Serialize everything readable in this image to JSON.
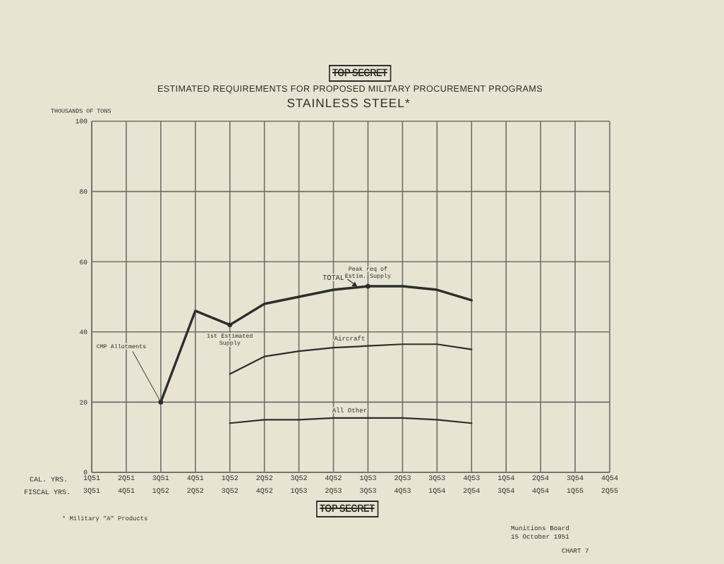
{
  "chart_data": {
    "type": "line",
    "title": "ESTIMATED REQUIREMENTS FOR PROPOSED MILITARY PROCUREMENT PROGRAMS",
    "subtitle": "STAINLESS STEEL*",
    "ylabel": "THOUSANDS OF TONS",
    "xlabel": "CAL. YRS.",
    "x2label": "FISCAL YRS.",
    "xlim": [
      "1951-01",
      "1954-10"
    ],
    "xticks": [
      {
        "value": "1951-01",
        "label": "1Q51"
      },
      {
        "value": "1951-04",
        "label": "2Q51"
      },
      {
        "value": "1951-07",
        "label": "3Q51"
      },
      {
        "value": "1951-10",
        "label": "4Q51"
      },
      {
        "value": "1952-01",
        "label": "1Q52"
      },
      {
        "value": "1952-04",
        "label": "2Q52"
      },
      {
        "value": "1952-07",
        "label": "3Q52"
      },
      {
        "value": "1952-10",
        "label": "4Q52"
      },
      {
        "value": "1953-01",
        "label": "1Q53"
      },
      {
        "value": "1953-04",
        "label": "2Q53"
      },
      {
        "value": "1953-07",
        "label": "3Q53"
      },
      {
        "value": "1953-10",
        "label": "4Q53"
      },
      {
        "value": "1954-01",
        "label": "1Q54"
      },
      {
        "value": "1954-04",
        "label": "2Q54"
      },
      {
        "value": "1954-07",
        "label": "3Q54"
      },
      {
        "value": "1954-10",
        "label": "4Q54"
      }
    ],
    "x2lim": [
      "1951-01",
      "1954-10"
    ],
    "x2ticks": [
      {
        "value": "1951-01",
        "label": "3Q51"
      },
      {
        "value": "1951-04",
        "label": "4Q51"
      },
      {
        "value": "1951-07",
        "label": "1Q52"
      },
      {
        "value": "1951-10",
        "label": "2Q52"
      },
      {
        "value": "1952-01",
        "label": "3Q52"
      },
      {
        "value": "1952-04",
        "label": "4Q52"
      },
      {
        "value": "1952-07",
        "label": "1Q53"
      },
      {
        "value": "1952-10",
        "label": "2Q53"
      },
      {
        "value": "1953-01",
        "label": "3Q53"
      },
      {
        "value": "1953-04",
        "label": "4Q53"
      },
      {
        "value": "1953-07",
        "label": "1Q54"
      },
      {
        "value": "1953-10",
        "label": "2Q54"
      },
      {
        "value": "1954-01",
        "label": "3Q54"
      },
      {
        "value": "1954-04",
        "label": "4Q54"
      },
      {
        "value": "1954-07",
        "label": "1Q55"
      },
      {
        "value": "1954-10",
        "label": "2Q55"
      }
    ],
    "ylim": [
      0,
      100
    ],
    "yticks": [
      0,
      20,
      40,
      60,
      80,
      100
    ],
    "grid": true,
    "series": [
      {
        "name": "TOTAL",
        "color": "#2e2e2a",
        "x": [
          "1951-07",
          "1951-10",
          "1952-01",
          "1952-04",
          "1952-07",
          "1952-10",
          "1953-01",
          "1953-04",
          "1953-07",
          "1953-10"
        ],
        "values": [
          20,
          46,
          42,
          48,
          50,
          52,
          53,
          53,
          52,
          49
        ]
      },
      {
        "name": "Aircraft",
        "color": "#2e2e2a",
        "x": [
          "1952-01",
          "1952-04",
          "1952-07",
          "1952-10",
          "1953-01",
          "1953-04",
          "1953-07",
          "1953-10"
        ],
        "values": [
          28,
          33,
          34.5,
          35.5,
          36,
          36.5,
          36.5,
          35
        ]
      },
      {
        "name": "All Other",
        "color": "#2e2e2a",
        "x": [
          "1952-01",
          "1952-04",
          "1952-07",
          "1952-10",
          "1953-01",
          "1953-04",
          "1953-07",
          "1953-10"
        ],
        "values": [
          14,
          15,
          15,
          15.5,
          15.5,
          15.5,
          15,
          14
        ]
      }
    ],
    "annotations": [
      "TOP SECRET",
      {
        "text": "CMP Allotments",
        "x": "1951-07",
        "y": 20
      },
      {
        "text": "1st Estimated Supply",
        "x": "1952-01",
        "y": 42
      },
      {
        "text": "Peak req of Estim. Supply",
        "x": "1953-01",
        "y": 53
      },
      "* Military \"A\" Products",
      "TOP SECRET",
      "Munitions Board",
      "15 October 1951",
      "CHART 7"
    ]
  }
}
